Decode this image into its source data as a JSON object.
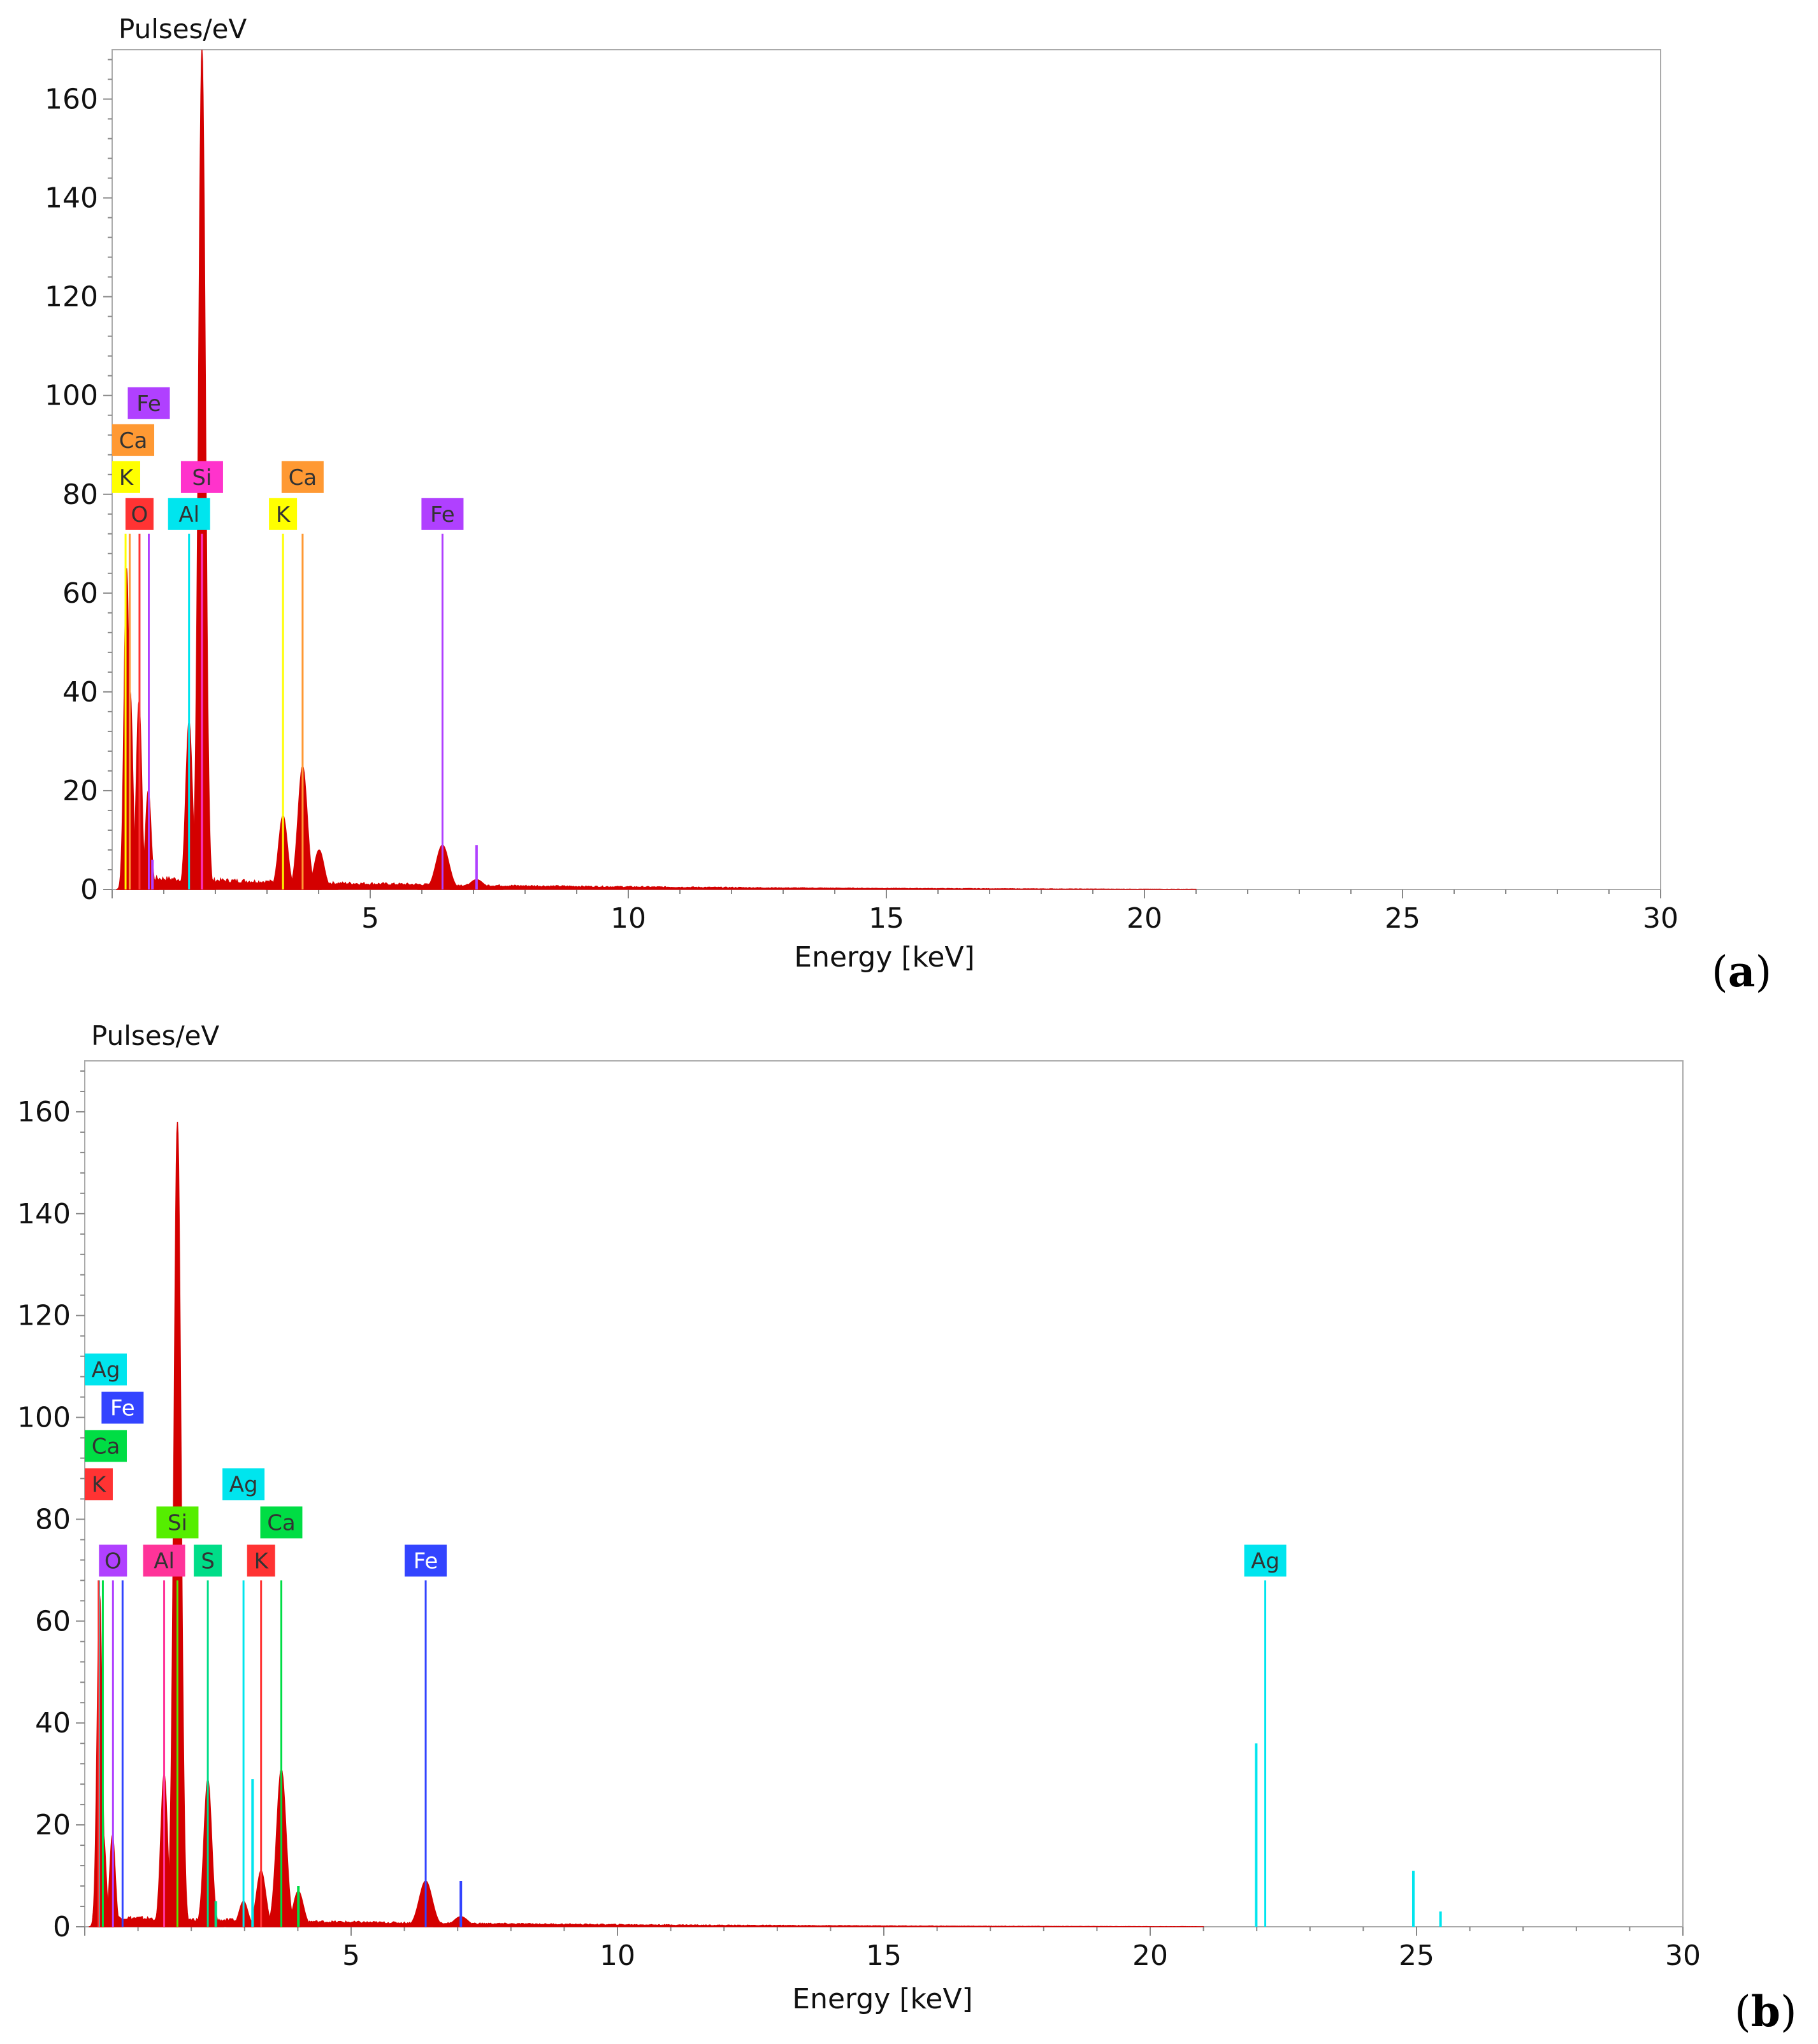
{
  "chart_data": [
    {
      "type": "area",
      "panel": "(a)",
      "panel_letter": "a",
      "ylabel": "Pulses/eV",
      "xlabel": "Energy [keV]",
      "xlim": [
        0,
        30
      ],
      "ylim": [
        0,
        170
      ],
      "xticks": [
        5,
        10,
        15,
        20,
        25,
        30
      ],
      "yticks": [
        0,
        20,
        40,
        60,
        80,
        100,
        120,
        140,
        160
      ],
      "spectrum_color": "#d40000",
      "background_level": 2,
      "peaks": [
        {
          "x": 0.28,
          "y": 65
        },
        {
          "x": 0.35,
          "y": 40
        },
        {
          "x": 0.52,
          "y": 38
        },
        {
          "x": 0.7,
          "y": 20
        },
        {
          "x": 1.0,
          "y": 2
        },
        {
          "x": 1.49,
          "y": 34
        },
        {
          "x": 1.74,
          "y": 170
        },
        {
          "x": 3.31,
          "y": 15
        },
        {
          "x": 3.69,
          "y": 25
        },
        {
          "x": 4.01,
          "y": 8
        },
        {
          "x": 6.4,
          "y": 9
        },
        {
          "x": 7.06,
          "y": 2
        }
      ],
      "markers": [
        {
          "element": "Fe",
          "x": 0.71,
          "color": "#b040ff",
          "row": 4
        },
        {
          "element": "Ca",
          "x": 0.34,
          "color": "#ff9933",
          "row": 3
        },
        {
          "element": "K",
          "x": 0.26,
          "color": "#ffff00",
          "row": 2
        },
        {
          "element": "Si",
          "x": 1.74,
          "color": "#ff33cc",
          "row": 2
        },
        {
          "element": "O",
          "x": 0.53,
          "color": "#ff3333",
          "row": 1
        },
        {
          "element": "Al",
          "x": 1.49,
          "color": "#00e5ee",
          "row": 1
        },
        {
          "element": "Ca",
          "x": 3.69,
          "color": "#ff9933",
          "row": 2
        },
        {
          "element": "K",
          "x": 3.31,
          "color": "#ffff00",
          "row": 1
        },
        {
          "element": "Fe",
          "x": 6.4,
          "color": "#b040ff",
          "row": 1
        }
      ],
      "minor_lines": [
        {
          "x": 7.06,
          "y": 9,
          "color": "#b040ff"
        },
        {
          "x": 0.78,
          "y": 6,
          "color": "#b040ff"
        }
      ]
    },
    {
      "type": "area",
      "panel": "(b)",
      "panel_letter": "b",
      "ylabel": "Pulses/eV",
      "xlabel": "Energy [keV]",
      "xlim": [
        0,
        30
      ],
      "ylim": [
        0,
        170
      ],
      "xticks": [
        5,
        10,
        15,
        20,
        25,
        30
      ],
      "yticks": [
        0,
        20,
        40,
        60,
        80,
        100,
        120,
        140,
        160
      ],
      "spectrum_color": "#d40000",
      "background_level": 1.5,
      "peaks": [
        {
          "x": 0.28,
          "y": 65
        },
        {
          "x": 0.35,
          "y": 18
        },
        {
          "x": 0.52,
          "y": 18
        },
        {
          "x": 1.49,
          "y": 30
        },
        {
          "x": 1.74,
          "y": 158
        },
        {
          "x": 2.31,
          "y": 29
        },
        {
          "x": 2.98,
          "y": 5
        },
        {
          "x": 3.31,
          "y": 11
        },
        {
          "x": 3.69,
          "y": 31
        },
        {
          "x": 4.01,
          "y": 7
        },
        {
          "x": 6.4,
          "y": 9
        },
        {
          "x": 7.06,
          "y": 2
        }
      ],
      "markers": [
        {
          "element": "Ag",
          "x": 0.27,
          "color": "#00e5ee",
          "row": 6
        },
        {
          "element": "Fe",
          "x": 0.71,
          "color": "#3344ff",
          "row": 5
        },
        {
          "element": "Ca",
          "x": 0.34,
          "color": "#00dd44",
          "row": 4
        },
        {
          "element": "K",
          "x": 0.26,
          "color": "#ff3333",
          "row": 3
        },
        {
          "element": "O",
          "x": 0.53,
          "color": "#b040ff",
          "row": 1
        },
        {
          "element": "Al",
          "x": 1.49,
          "color": "#ff3399",
          "row": 1
        },
        {
          "element": "Si",
          "x": 1.74,
          "color": "#55ee00",
          "row": 2
        },
        {
          "element": "S",
          "x": 2.31,
          "color": "#00dd88",
          "row": 1
        },
        {
          "element": "Ag",
          "x": 2.98,
          "color": "#00e5ee",
          "row": 3
        },
        {
          "element": "Ca",
          "x": 3.69,
          "color": "#00dd44",
          "row": 2
        },
        {
          "element": "K",
          "x": 3.31,
          "color": "#ff3333",
          "row": 1
        },
        {
          "element": "Fe",
          "x": 6.4,
          "color": "#3344ff",
          "row": 1
        },
        {
          "element": "Ag",
          "x": 22.16,
          "color": "#00e5ee",
          "row": 1
        }
      ],
      "minor_lines": [
        {
          "x": 21.99,
          "y": 36,
          "color": "#00e5ee"
        },
        {
          "x": 24.94,
          "y": 11,
          "color": "#00e5ee"
        },
        {
          "x": 25.45,
          "y": 3,
          "color": "#00e5ee"
        },
        {
          "x": 3.15,
          "y": 29,
          "color": "#00e5ee"
        },
        {
          "x": 7.06,
          "y": 9,
          "color": "#3344ff"
        },
        {
          "x": 4.01,
          "y": 8,
          "color": "#00dd44"
        },
        {
          "x": 2.46,
          "y": 5,
          "color": "#00dd88"
        }
      ]
    }
  ]
}
